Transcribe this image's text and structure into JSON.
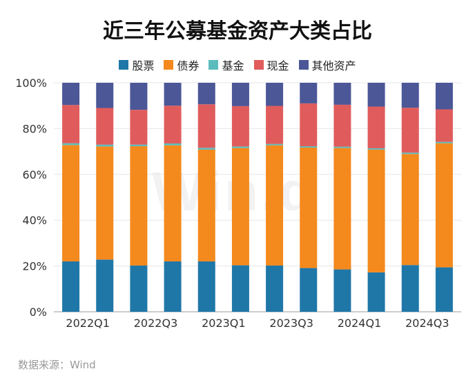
{
  "title": "近三年公募基金资产大类占比",
  "source": "数据来源：Wind",
  "watermark": "Win.d",
  "legend": [
    {
      "label": "股票",
      "color": "#1f77a8"
    },
    {
      "label": "债券",
      "color": "#f4891d"
    },
    {
      "label": "基金",
      "color": "#5bbcbd"
    },
    {
      "label": "现金",
      "color": "#e05c5c"
    },
    {
      "label": "其他资产",
      "color": "#4b5797"
    }
  ],
  "chart_data": {
    "type": "bar",
    "stacked": true,
    "categories": [
      "2022Q1",
      "2022Q2",
      "2022Q3",
      "2022Q4",
      "2023Q1",
      "2023Q2",
      "2023Q3",
      "2023Q4",
      "2024Q1",
      "2024Q2",
      "2024Q3",
      "2024Q4"
    ],
    "x_tick_labels": [
      "2022Q1",
      "",
      "2022Q3",
      "",
      "2023Q1",
      "",
      "2023Q3",
      "",
      "2024Q1",
      "",
      "2024Q3",
      ""
    ],
    "y_ticks": [
      "0%",
      "20%",
      "40%",
      "60%",
      "80%",
      "100%"
    ],
    "ylim": [
      0,
      100
    ],
    "grid": true,
    "legend_position": "top",
    "series": [
      {
        "name": "股票",
        "color": "#1f77a8",
        "values": [
          22.0,
          22.8,
          20.2,
          22.0,
          22.0,
          20.3,
          20.2,
          19.1,
          18.5,
          17.2,
          20.4,
          19.4
        ]
      },
      {
        "name": "债券",
        "color": "#f4891d",
        "values": [
          50.8,
          49.4,
          52.1,
          50.7,
          48.8,
          51.2,
          52.5,
          52.6,
          53.0,
          53.6,
          48.5,
          54.2
        ]
      },
      {
        "name": "基金",
        "color": "#5bbcbd",
        "values": [
          0.8,
          0.8,
          0.7,
          0.8,
          0.8,
          0.7,
          0.6,
          0.6,
          0.6,
          0.6,
          0.6,
          0.6
        ]
      },
      {
        "name": "现金",
        "color": "#e05c5c",
        "values": [
          16.7,
          16.0,
          15.2,
          16.5,
          19.0,
          17.6,
          16.6,
          18.7,
          18.3,
          18.2,
          19.6,
          14.2
        ]
      },
      {
        "name": "其他资产",
        "color": "#4b5797",
        "values": [
          9.7,
          11.0,
          11.8,
          10.0,
          9.4,
          10.2,
          10.1,
          9.0,
          9.6,
          10.4,
          10.9,
          11.6
        ]
      }
    ]
  }
}
